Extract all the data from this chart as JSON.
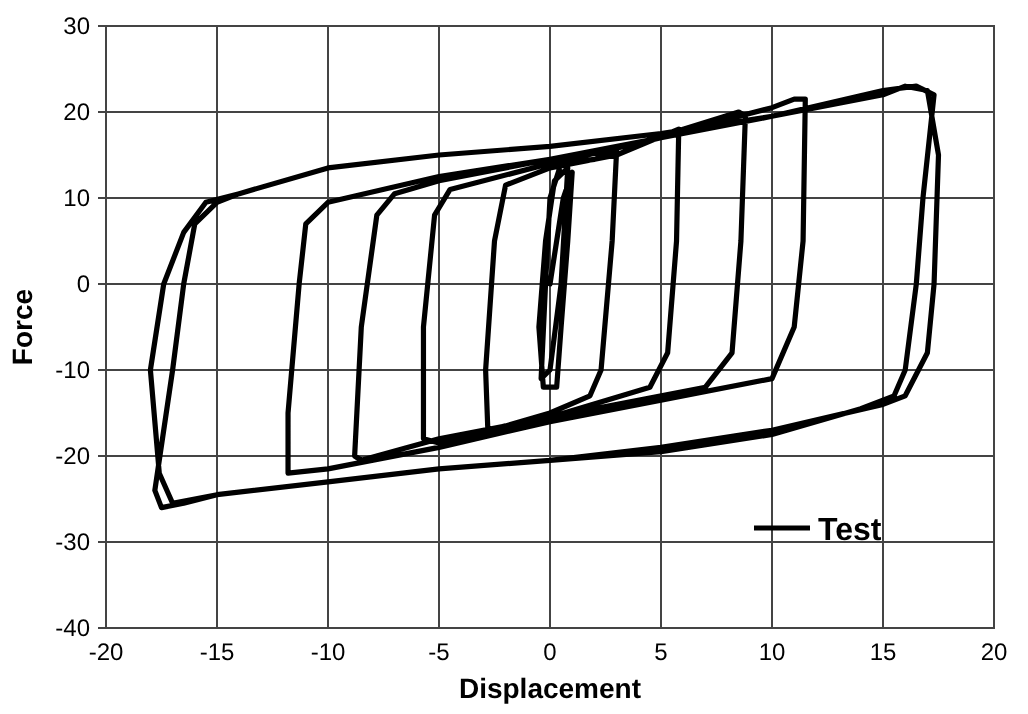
{
  "chart_data": {
    "type": "line",
    "xlabel": "Displacement",
    "ylabel": "Force",
    "xlim": [
      -20,
      20
    ],
    "xticks": [
      -20,
      -15,
      -10,
      -5,
      0,
      5,
      10,
      15,
      20
    ],
    "ylim": [
      -40,
      30
    ],
    "yticks": [
      -40,
      -30,
      -20,
      -10,
      0,
      10,
      20,
      30
    ],
    "grid": true,
    "legend": "bottom right",
    "marker": "none",
    "line_style": "solid",
    "series": [
      {
        "name": "Test",
        "color": "#000000",
        "x": [
          0,
          0.6,
          1,
          0.8,
          0.5,
          0.3,
          -0.3,
          -0.5,
          -0.2,
          0.2,
          0.8,
          0.5,
          0,
          -0.4,
          -0.2,
          0,
          0.5,
          2,
          3,
          2.8,
          2.3,
          1.8,
          0,
          -2,
          -2.8,
          -2.9,
          -2.5,
          -2,
          0,
          3,
          5.8,
          5.7,
          5.3,
          4.5,
          0,
          -5,
          -5.7,
          -5.7,
          -5.2,
          -4.5,
          0,
          5,
          6,
          8.5,
          8.8,
          8.6,
          8.2,
          7,
          0,
          -5,
          -8.5,
          -8.8,
          -8.5,
          -7.8,
          -7,
          -5,
          0,
          5,
          8.5,
          10,
          11,
          11.5,
          11.4,
          11,
          10,
          5,
          0,
          -5,
          -10,
          -11.8,
          -11.8,
          -11.3,
          -11,
          -10,
          -5,
          0,
          5,
          10,
          15,
          16,
          17,
          17.5,
          17.3,
          17,
          16,
          15,
          10,
          5,
          0,
          -5,
          -10,
          -15,
          -17,
          -17.6,
          -18,
          -17.4,
          -16.5,
          -15.5,
          -14,
          -10,
          -5,
          0,
          5,
          10,
          15,
          16.5,
          17.3,
          16.8,
          16.5,
          16,
          15.5,
          14,
          10,
          5,
          0,
          -5,
          -10,
          -15,
          -16.5,
          -17.5,
          -17.8,
          -17,
          -16.5,
          -16,
          -15,
          -14
        ],
        "values": [
          0,
          10,
          13,
          5,
          -5,
          -12,
          -12,
          -5,
          5,
          12,
          13.5,
          0,
          -10,
          -11,
          0,
          10,
          14,
          14.5,
          15.5,
          5,
          -10,
          -13,
          -15,
          -16.5,
          -17,
          -10,
          5,
          11.5,
          13.5,
          15,
          18,
          5,
          -8,
          -12,
          -15.5,
          -18.5,
          -18,
          -5,
          8,
          11,
          14,
          17,
          18,
          20,
          19.5,
          5,
          -8,
          -12,
          -15.5,
          -18,
          -20.5,
          -20,
          -5,
          8,
          10.5,
          12,
          14.5,
          17,
          19.5,
          20.5,
          21.5,
          21.5,
          5,
          -5,
          -11,
          -13.5,
          -16,
          -19,
          -21.5,
          -22,
          -15,
          0,
          7,
          9.5,
          12.5,
          14.5,
          17,
          19.5,
          22,
          23,
          22.5,
          15,
          0,
          -8,
          -13,
          -14,
          -17,
          -19,
          -20.5,
          -21.5,
          -23,
          -24.5,
          -25.5,
          -22,
          -10,
          0,
          6,
          9.5,
          10.5,
          13.5,
          15,
          16,
          17.5,
          19.5,
          22.5,
          23,
          22,
          10,
          0,
          -10,
          -13,
          -14.5,
          -17.5,
          -19.5,
          -20.5,
          -21.5,
          -23,
          -24.5,
          -25.5,
          -26,
          -24,
          -10,
          0,
          7,
          9.5,
          10.5
        ]
      }
    ]
  }
}
